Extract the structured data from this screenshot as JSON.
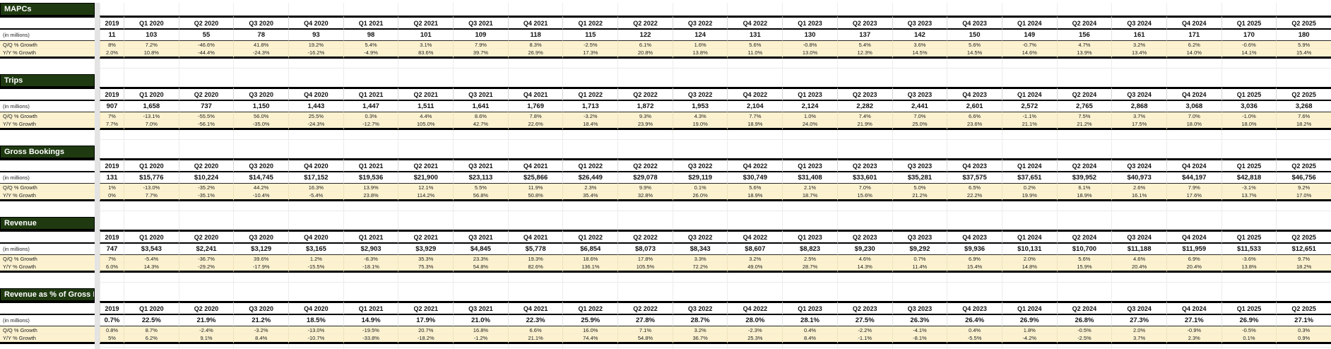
{
  "colors": {
    "section_header_bg": "#1f3a10",
    "growth_row_bg": "#fcf2d0",
    "pane_divider": "#e4e4e4",
    "thick_border": "#000000"
  },
  "quarters": [
    "Q1 2020",
    "Q2 2020",
    "Q3 2020",
    "Q4 2020",
    "Q1 2021",
    "Q2 2021",
    "Q3 2021",
    "Q4 2021",
    "Q1 2022",
    "Q2 2022",
    "Q3 2022",
    "Q4 2022",
    "Q1 2023",
    "Q2 2023",
    "Q3 2023",
    "Q4 2023",
    "Q1 2024",
    "Q2 2024",
    "Q3 2024",
    "Q4 2024",
    "Q1 2025",
    "Q2 2025"
  ],
  "frozen_quarter_fragment": "2019",
  "sections": [
    {
      "title": "MAPCs",
      "unit_label": "(in millions)",
      "qq_label": "Q/Q % Growth",
      "yy_label": "Y/Y % Growth",
      "frozen": {
        "header": "2019",
        "value": "11",
        "qq": "8%",
        "yy": "2.0%"
      },
      "values": [
        "103",
        "55",
        "78",
        "93",
        "98",
        "101",
        "109",
        "118",
        "115",
        "122",
        "124",
        "131",
        "130",
        "137",
        "142",
        "150",
        "149",
        "156",
        "161",
        "171",
        "170",
        "180"
      ],
      "qq": [
        "7.2%",
        "-46.6%",
        "41.8%",
        "19.2%",
        "5.4%",
        "3.1%",
        "7.9%",
        "8.3%",
        "-2.5%",
        "6.1%",
        "1.6%",
        "5.6%",
        "-0.8%",
        "5.4%",
        "3.6%",
        "5.6%",
        "-0.7%",
        "4.7%",
        "3.2%",
        "6.2%",
        "-0.6%",
        "5.9%"
      ],
      "yy": [
        "10.8%",
        "-44.4%",
        "-24.3%",
        "-16.2%",
        "-4.9%",
        "83.6%",
        "39.7%",
        "26.9%",
        "17.3%",
        "20.8%",
        "13.8%",
        "11.0%",
        "13.0%",
        "12.3%",
        "14.5%",
        "14.5%",
        "14.6%",
        "13.9%",
        "13.4%",
        "14.0%",
        "14.1%",
        "15.4%"
      ]
    },
    {
      "title": "Trips",
      "unit_label": "(in millions)",
      "qq_label": "Q/Q % Growth",
      "yy_label": "Y/Y % Growth",
      "frozen": {
        "header": "2019",
        "value": "907",
        "qq": "7%",
        "yy": "7.7%"
      },
      "values": [
        "1,658",
        "737",
        "1,150",
        "1,443",
        "1,447",
        "1,511",
        "1,641",
        "1,769",
        "1,713",
        "1,872",
        "1,953",
        "2,104",
        "2,124",
        "2,282",
        "2,441",
        "2,601",
        "2,572",
        "2,765",
        "2,868",
        "3,068",
        "3,036",
        "3,268"
      ],
      "qq": [
        "-13.1%",
        "-55.5%",
        "56.0%",
        "25.5%",
        "0.3%",
        "4.4%",
        "8.6%",
        "7.8%",
        "-3.2%",
        "9.3%",
        "4.3%",
        "7.7%",
        "1.0%",
        "7.4%",
        "7.0%",
        "6.6%",
        "-1.1%",
        "7.5%",
        "3.7%",
        "7.0%",
        "-1.0%",
        "7.6%"
      ],
      "yy": [
        "7.0%",
        "-56.1%",
        "-35.0%",
        "-24.3%",
        "-12.7%",
        "105.0%",
        "42.7%",
        "22.6%",
        "18.4%",
        "23.9%",
        "19.0%",
        "18.9%",
        "24.0%",
        "21.9%",
        "25.0%",
        "23.6%",
        "21.1%",
        "21.2%",
        "17.5%",
        "18.0%",
        "18.0%",
        "18.2%"
      ]
    },
    {
      "title": "Gross Bookings",
      "unit_label": "(in millions)",
      "qq_label": "Q/Q % Growth",
      "yy_label": "Y/Y % Growth",
      "frozen": {
        "header": "2019",
        "value": "131",
        "qq": "1%",
        "yy": "0%"
      },
      "values": [
        "$15,776",
        "$10,224",
        "$14,745",
        "$17,152",
        "$19,536",
        "$21,900",
        "$23,113",
        "$25,866",
        "$26,449",
        "$29,078",
        "$29,119",
        "$30,749",
        "$31,408",
        "$33,601",
        "$35,281",
        "$37,575",
        "$37,651",
        "$39,952",
        "$40,973",
        "$44,197",
        "$42,818",
        "$46,756"
      ],
      "qq": [
        "-13.0%",
        "-35.2%",
        "44.2%",
        "16.3%",
        "13.9%",
        "12.1%",
        "5.5%",
        "11.9%",
        "2.3%",
        "9.9%",
        "0.1%",
        "5.6%",
        "2.1%",
        "7.0%",
        "5.0%",
        "6.5%",
        "0.2%",
        "6.1%",
        "2.6%",
        "7.9%",
        "-3.1%",
        "9.2%"
      ],
      "yy": [
        "7.7%",
        "-35.1%",
        "-10.4%",
        "-5.4%",
        "23.8%",
        "114.2%",
        "56.8%",
        "50.8%",
        "35.4%",
        "32.8%",
        "26.0%",
        "18.9%",
        "18.7%",
        "15.6%",
        "21.2%",
        "22.2%",
        "19.9%",
        "18.9%",
        "16.1%",
        "17.6%",
        "13.7%",
        "17.0%"
      ]
    },
    {
      "title": "Revenue",
      "unit_label": "(in millions)",
      "qq_label": "Q/Q % Growth",
      "yy_label": "Y/Y % Growth",
      "frozen": {
        "header": "2019",
        "value": "747",
        "qq": "7%",
        "yy": "6.0%"
      },
      "values": [
        "$3,543",
        "$2,241",
        "$3,129",
        "$3,165",
        "$2,903",
        "$3,929",
        "$4,845",
        "$5,778",
        "$6,854",
        "$8,073",
        "$8,343",
        "$8,607",
        "$8,823",
        "$9,230",
        "$9,292",
        "$9,936",
        "$10,131",
        "$10,700",
        "$11,188",
        "$11,959",
        "$11,533",
        "$12,651"
      ],
      "qq": [
        "-5.4%",
        "-36.7%",
        "39.6%",
        "1.2%",
        "-8.3%",
        "35.3%",
        "23.3%",
        "19.3%",
        "18.6%",
        "17.8%",
        "3.3%",
        "3.2%",
        "2.5%",
        "4.6%",
        "0.7%",
        "6.9%",
        "2.0%",
        "5.6%",
        "4.6%",
        "6.9%",
        "-3.6%",
        "9.7%"
      ],
      "yy": [
        "14.3%",
        "-29.2%",
        "-17.9%",
        "-15.5%",
        "-18.1%",
        "75.3%",
        "54.8%",
        "82.6%",
        "136.1%",
        "105.5%",
        "72.2%",
        "49.0%",
        "28.7%",
        "14.3%",
        "11.4%",
        "15.4%",
        "14.8%",
        "15.9%",
        "20.4%",
        "20.4%",
        "13.8%",
        "18.2%"
      ]
    },
    {
      "title": "Revenue as % of Gross Bookings",
      "unit_label": "(in millions)",
      "qq_label": "Q/Q % Growth",
      "yy_label": "Y/Y % Growth",
      "frozen": {
        "header": "2019",
        "value": "0.7%",
        "qq": "0.8%",
        "yy": "5%"
      },
      "values": [
        "22.5%",
        "21.9%",
        "21.2%",
        "18.5%",
        "14.9%",
        "17.9%",
        "21.0%",
        "22.3%",
        "25.9%",
        "27.8%",
        "28.7%",
        "28.0%",
        "28.1%",
        "27.5%",
        "26.3%",
        "26.4%",
        "26.9%",
        "26.8%",
        "27.3%",
        "27.1%",
        "26.9%",
        "27.1%"
      ],
      "qq": [
        "8.7%",
        "-2.4%",
        "-3.2%",
        "-13.0%",
        "-19.5%",
        "20.7%",
        "16.8%",
        "6.6%",
        "16.0%",
        "7.1%",
        "3.2%",
        "-2.3%",
        "0.4%",
        "-2.2%",
        "-4.1%",
        "0.4%",
        "1.8%",
        "-0.5%",
        "2.0%",
        "-0.9%",
        "-0.5%",
        "0.3%"
      ],
      "yy": [
        "6.2%",
        "9.1%",
        "8.4%",
        "-10.7%",
        "-33.8%",
        "-18.2%",
        "-1.2%",
        "21.1%",
        "74.4%",
        "54.8%",
        "36.7%",
        "25.3%",
        "8.4%",
        "-1.1%",
        "-8.1%",
        "-5.5%",
        "-4.2%",
        "-2.5%",
        "3.7%",
        "2.3%",
        "0.1%",
        "0.9%"
      ]
    }
  ]
}
